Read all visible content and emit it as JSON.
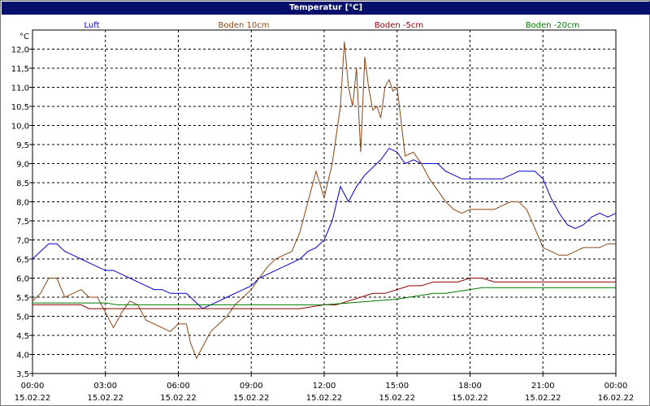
{
  "window": {
    "title": "Temperatur [°C]"
  },
  "chart_data": {
    "type": "line",
    "title": "Temperatur [°C]",
    "ylabel": "°C",
    "xlabel": "",
    "ylim": [
      3.5,
      12.5
    ],
    "xlim": [
      0,
      24
    ],
    "grid": true,
    "legend_placement": "top",
    "y_ticks": [
      "3,5",
      "4,0",
      "4,5",
      "5,0",
      "5,5",
      "6,0",
      "6,5",
      "7,0",
      "7,5",
      "8,0",
      "8,5",
      "9,0",
      "9,5",
      "10,0",
      "10,5",
      "11,0",
      "11,5",
      "12,0"
    ],
    "x_ticks": [
      {
        "time": "00:00",
        "date": "15.02.22"
      },
      {
        "time": "03:00",
        "date": "15.02.22"
      },
      {
        "time": "06:00",
        "date": "15.02.22"
      },
      {
        "time": "09:00",
        "date": "15.02.22"
      },
      {
        "time": "12:00",
        "date": "15.02.22"
      },
      {
        "time": "15:00",
        "date": "15.02.22"
      },
      {
        "time": "18:00",
        "date": "15.02.22"
      },
      {
        "time": "21:00",
        "date": "15.02.22"
      },
      {
        "time": "00:00",
        "date": "16.02.22"
      }
    ],
    "series": [
      {
        "name": "Luft",
        "color": "#0000cc",
        "x": [
          0,
          0.33,
          0.67,
          1,
          1.33,
          1.67,
          2,
          2.33,
          2.67,
          3,
          3.33,
          3.67,
          4,
          4.33,
          4.67,
          5,
          5.33,
          5.67,
          6,
          6.33,
          6.67,
          7,
          7.33,
          7.67,
          8,
          8.33,
          8.67,
          9,
          9.33,
          9.67,
          10,
          10.33,
          10.67,
          11,
          11.33,
          11.67,
          12,
          12.33,
          12.67,
          13,
          13.33,
          13.67,
          14,
          14.33,
          14.67,
          15,
          15.33,
          15.67,
          16,
          16.33,
          16.67,
          17,
          17.33,
          17.67,
          18,
          18.33,
          18.67,
          19,
          19.33,
          19.67,
          20,
          20.33,
          20.67,
          21,
          21.33,
          21.67,
          22,
          22.33,
          22.67,
          23,
          23.33,
          23.67,
          24
        ],
        "values": [
          6.5,
          6.7,
          6.9,
          6.9,
          6.7,
          6.6,
          6.5,
          6.4,
          6.3,
          6.2,
          6.2,
          6.1,
          6.0,
          5.9,
          5.8,
          5.7,
          5.7,
          5.6,
          5.6,
          5.6,
          5.4,
          5.2,
          5.3,
          5.4,
          5.5,
          5.6,
          5.7,
          5.8,
          6.0,
          6.1,
          6.2,
          6.3,
          6.4,
          6.5,
          6.7,
          6.8,
          7.0,
          7.5,
          8.4,
          8.0,
          8.4,
          8.7,
          8.9,
          9.1,
          9.4,
          9.3,
          9.0,
          9.1,
          9.0,
          9.0,
          9.0,
          8.8,
          8.7,
          8.6,
          8.6,
          8.6,
          8.6,
          8.6,
          8.6,
          8.7,
          8.8,
          8.8,
          8.8,
          8.6,
          8.1,
          7.7,
          7.4,
          7.3,
          7.4,
          7.6,
          7.7,
          7.6,
          7.7
        ]
      },
      {
        "name": "Boden 10cm",
        "color": "#8b4513",
        "x": [
          0,
          0.33,
          0.67,
          1,
          1.33,
          1.67,
          2,
          2.33,
          2.67,
          3,
          3.33,
          3.67,
          4,
          4.33,
          4.67,
          5,
          5.33,
          5.67,
          6,
          6.33,
          6.5,
          6.75,
          7,
          7.33,
          7.67,
          8,
          8.33,
          8.67,
          9,
          9.33,
          9.67,
          10,
          10.33,
          10.67,
          11,
          11.33,
          11.67,
          12,
          12.33,
          12.67,
          12.83,
          13,
          13.17,
          13.33,
          13.5,
          13.67,
          13.83,
          14,
          14.17,
          14.33,
          14.5,
          14.67,
          14.83,
          15,
          15.33,
          15.67,
          16,
          16.33,
          16.67,
          17,
          17.33,
          17.67,
          18,
          18.33,
          18.67,
          19,
          19.33,
          19.67,
          20,
          20.33,
          20.67,
          21,
          21.33,
          21.67,
          22,
          22.33,
          22.67,
          23,
          23.33,
          23.67,
          24
        ],
        "values": [
          5.4,
          5.6,
          6.0,
          6.0,
          5.5,
          5.6,
          5.7,
          5.5,
          5.5,
          5.1,
          4.7,
          5.1,
          5.4,
          5.3,
          4.9,
          4.8,
          4.7,
          4.6,
          4.8,
          4.8,
          4.3,
          3.9,
          4.2,
          4.6,
          4.8,
          5.0,
          5.3,
          5.5,
          5.7,
          6.0,
          6.3,
          6.5,
          6.6,
          6.7,
          7.2,
          8.0,
          8.8,
          8.1,
          9.0,
          10.5,
          12.2,
          11.0,
          10.5,
          11.5,
          9.3,
          11.8,
          11.0,
          10.4,
          10.5,
          10.2,
          11.0,
          11.2,
          10.9,
          11.0,
          9.2,
          9.3,
          9.0,
          8.6,
          8.3,
          8.0,
          7.8,
          7.7,
          7.8,
          7.8,
          7.8,
          7.8,
          7.9,
          8.0,
          8.0,
          7.8,
          7.3,
          6.8,
          6.7,
          6.6,
          6.6,
          6.7,
          6.8,
          6.8,
          6.8,
          6.9,
          6.9
        ]
      },
      {
        "name": "Boden -5cm",
        "color": "#8b0000",
        "x": [
          0,
          1,
          2,
          2.33,
          3,
          4,
          5,
          6,
          7,
          8,
          9,
          10,
          11,
          12,
          12.5,
          13,
          13.5,
          14,
          14.5,
          15,
          15.5,
          16,
          16.5,
          17,
          17.5,
          18,
          18.5,
          19,
          20,
          21,
          22,
          23,
          24
        ],
        "values": [
          5.3,
          5.3,
          5.3,
          5.2,
          5.2,
          5.2,
          5.2,
          5.2,
          5.2,
          5.2,
          5.2,
          5.2,
          5.2,
          5.3,
          5.3,
          5.4,
          5.5,
          5.6,
          5.6,
          5.7,
          5.8,
          5.8,
          5.9,
          5.9,
          5.9,
          6.0,
          6.0,
          5.9,
          5.9,
          5.9,
          5.9,
          5.9,
          5.9
        ]
      },
      {
        "name": "Boden -20cm",
        "color": "#007700",
        "x": [
          0,
          3,
          3.5,
          4,
          5,
          6,
          7,
          8,
          9,
          10,
          11,
          12,
          13,
          14,
          15,
          15.5,
          16,
          16.5,
          17,
          17.5,
          18,
          18.5,
          19,
          20,
          21,
          22,
          23,
          24
        ],
        "values": [
          5.35,
          5.35,
          5.3,
          5.3,
          5.3,
          5.3,
          5.3,
          5.3,
          5.3,
          5.3,
          5.3,
          5.3,
          5.35,
          5.4,
          5.45,
          5.5,
          5.55,
          5.6,
          5.6,
          5.65,
          5.7,
          5.75,
          5.75,
          5.75,
          5.75,
          5.75,
          5.75,
          5.75
        ]
      }
    ]
  }
}
